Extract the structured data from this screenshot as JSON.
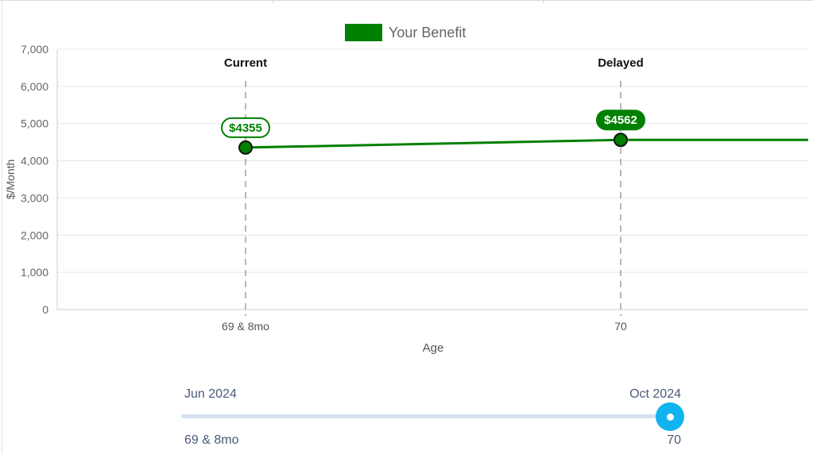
{
  "chart_data": {
    "type": "line",
    "legend": "Your Benefit",
    "series_color": "#008000",
    "xlabel": "Age",
    "ylabel": "$/Month",
    "ylim": [
      0,
      7000
    ],
    "yticks": [
      "0",
      "1,000",
      "2,000",
      "3,000",
      "4,000",
      "5,000",
      "6,000",
      "7,000"
    ],
    "points": [
      {
        "age": "69 & 8mo",
        "value": 4355,
        "label": "$4355",
        "marker": "Current",
        "style": "outline"
      },
      {
        "age": "70",
        "value": 4562,
        "label": "$4562",
        "marker": "Delayed",
        "style": "filled"
      }
    ],
    "grid": true
  },
  "slider": {
    "start_date": "Jun 2024",
    "end_date": "Oct 2024",
    "start_age": "69 & 8mo",
    "end_age": "70",
    "value": 1.0,
    "color": "#11b3ef"
  }
}
